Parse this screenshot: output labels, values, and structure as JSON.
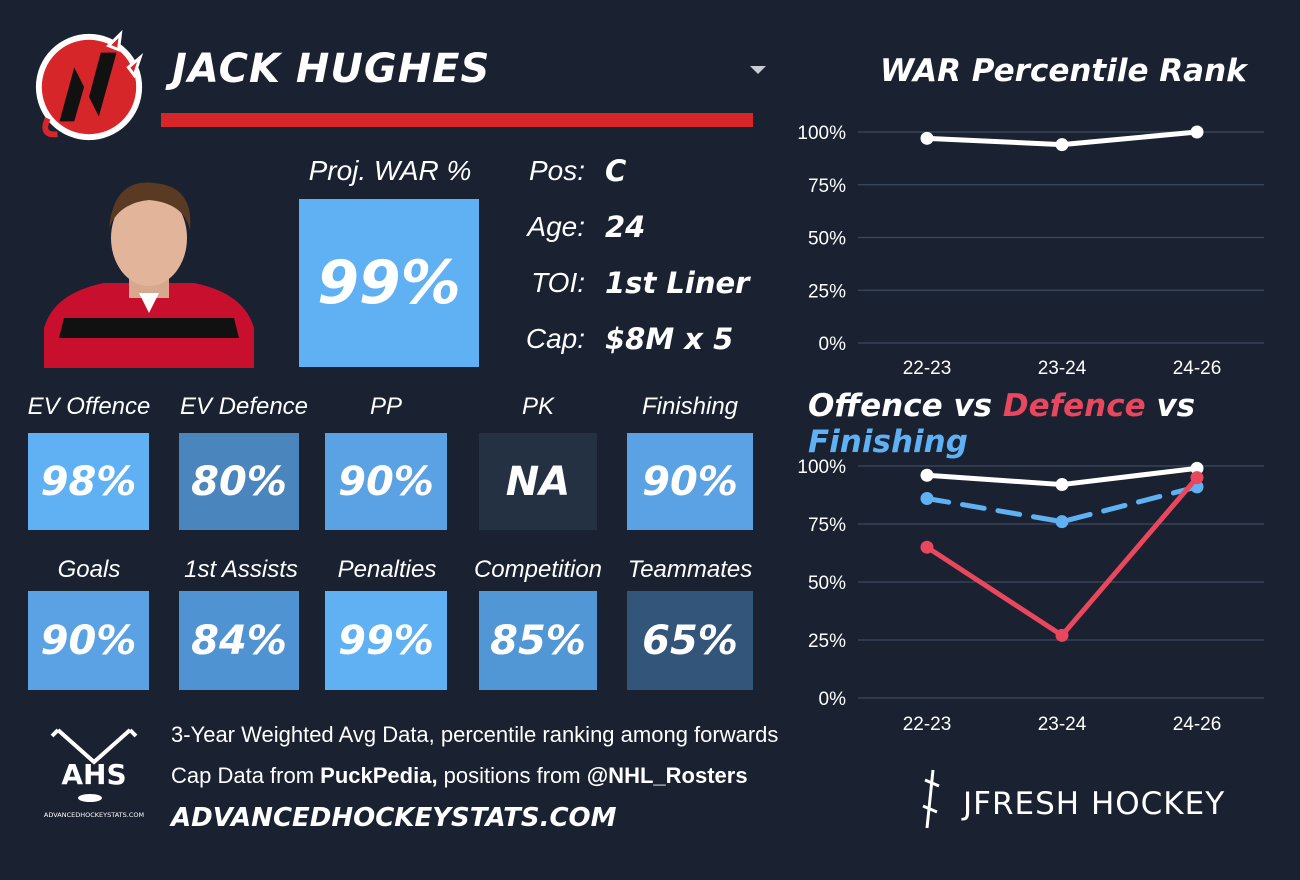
{
  "player": {
    "name": "JACK HUGHES",
    "proj_war_label": "Proj. WAR %",
    "proj_war_value": "99%",
    "proj_war_color": "#5fb1f4"
  },
  "info": [
    {
      "label": "Pos:",
      "value": "C"
    },
    {
      "label": "Age:",
      "value": "24"
    },
    {
      "label": "TOI:",
      "value": "1st Liner"
    },
    {
      "label": "Cap:",
      "value": "$8M x 5"
    }
  ],
  "stats_row1": [
    {
      "label": "EV Offence",
      "value": "98%",
      "color": "#5fb1f4"
    },
    {
      "label": "EV Defence",
      "value": "80%",
      "color": "#4a86bd"
    },
    {
      "label": "PP",
      "value": "90%",
      "color": "#5aa2e4"
    },
    {
      "label": "PK",
      "value": "NA",
      "color": "#243142"
    },
    {
      "label": "Finishing",
      "value": "90%",
      "color": "#5aa2e4"
    }
  ],
  "stats_row2": [
    {
      "label": "Goals",
      "value": "90%",
      "color": "#5aa2e4"
    },
    {
      "label": "1st Assists",
      "value": "84%",
      "color": "#4f93d2"
    },
    {
      "label": "Penalties",
      "value": "99%",
      "color": "#5fb1f4"
    },
    {
      "label": "Competition",
      "value": "85%",
      "color": "#5196d5"
    },
    {
      "label": "Teammates",
      "value": "65%",
      "color": "#33557a"
    }
  ],
  "footer": {
    "line1": "3-Year Weighted Avg Data, percentile ranking among forwards",
    "line2_prefix": "Cap Data from ",
    "line2_bold1": "PuckPedia,",
    "line2_mid": " positions from ",
    "line2_bold2": "@NHL_Rosters",
    "site": "ADVANCEDHOCKEYSTATS.COM",
    "ahs_logo_text": "AHS",
    "ahs_logo_sub": "ADVANCEDHOCKEYSTATS.COM",
    "brand": "JFRESH HOCKEY"
  },
  "chart_data": [
    {
      "type": "line",
      "title": "WAR Percentile Rank",
      "x": [
        "22-23",
        "23-24",
        "24-26"
      ],
      "yticks": [
        "100%",
        "75%",
        "50%",
        "25%",
        "0%"
      ],
      "ylim": [
        0,
        100
      ],
      "series": [
        {
          "values": [
            97,
            94,
            100
          ],
          "color": "#ffffff",
          "dash": false
        }
      ]
    },
    {
      "type": "line",
      "title_parts": [
        {
          "text": "Offence",
          "color": "#ffffff"
        },
        {
          "text": " vs ",
          "color": "#ffffff"
        },
        {
          "text": "Defence",
          "color": "#e8475e"
        },
        {
          "text": " vs ",
          "color": "#ffffff"
        },
        {
          "text": "Finishing",
          "color": "#5fb1f4"
        }
      ],
      "x": [
        "22-23",
        "23-24",
        "24-26"
      ],
      "yticks": [
        "100%",
        "75%",
        "50%",
        "25%",
        "0%"
      ],
      "ylim": [
        0,
        100
      ],
      "series": [
        {
          "name": "Offence",
          "values": [
            96,
            92,
            99
          ],
          "color": "#ffffff",
          "dash": false
        },
        {
          "name": "Finishing",
          "values": [
            86,
            76,
            91
          ],
          "color": "#5fb1f4",
          "dash": true
        },
        {
          "name": "Defence",
          "values": [
            65,
            27,
            95
          ],
          "color": "#e8475e",
          "dash": false
        }
      ]
    }
  ]
}
